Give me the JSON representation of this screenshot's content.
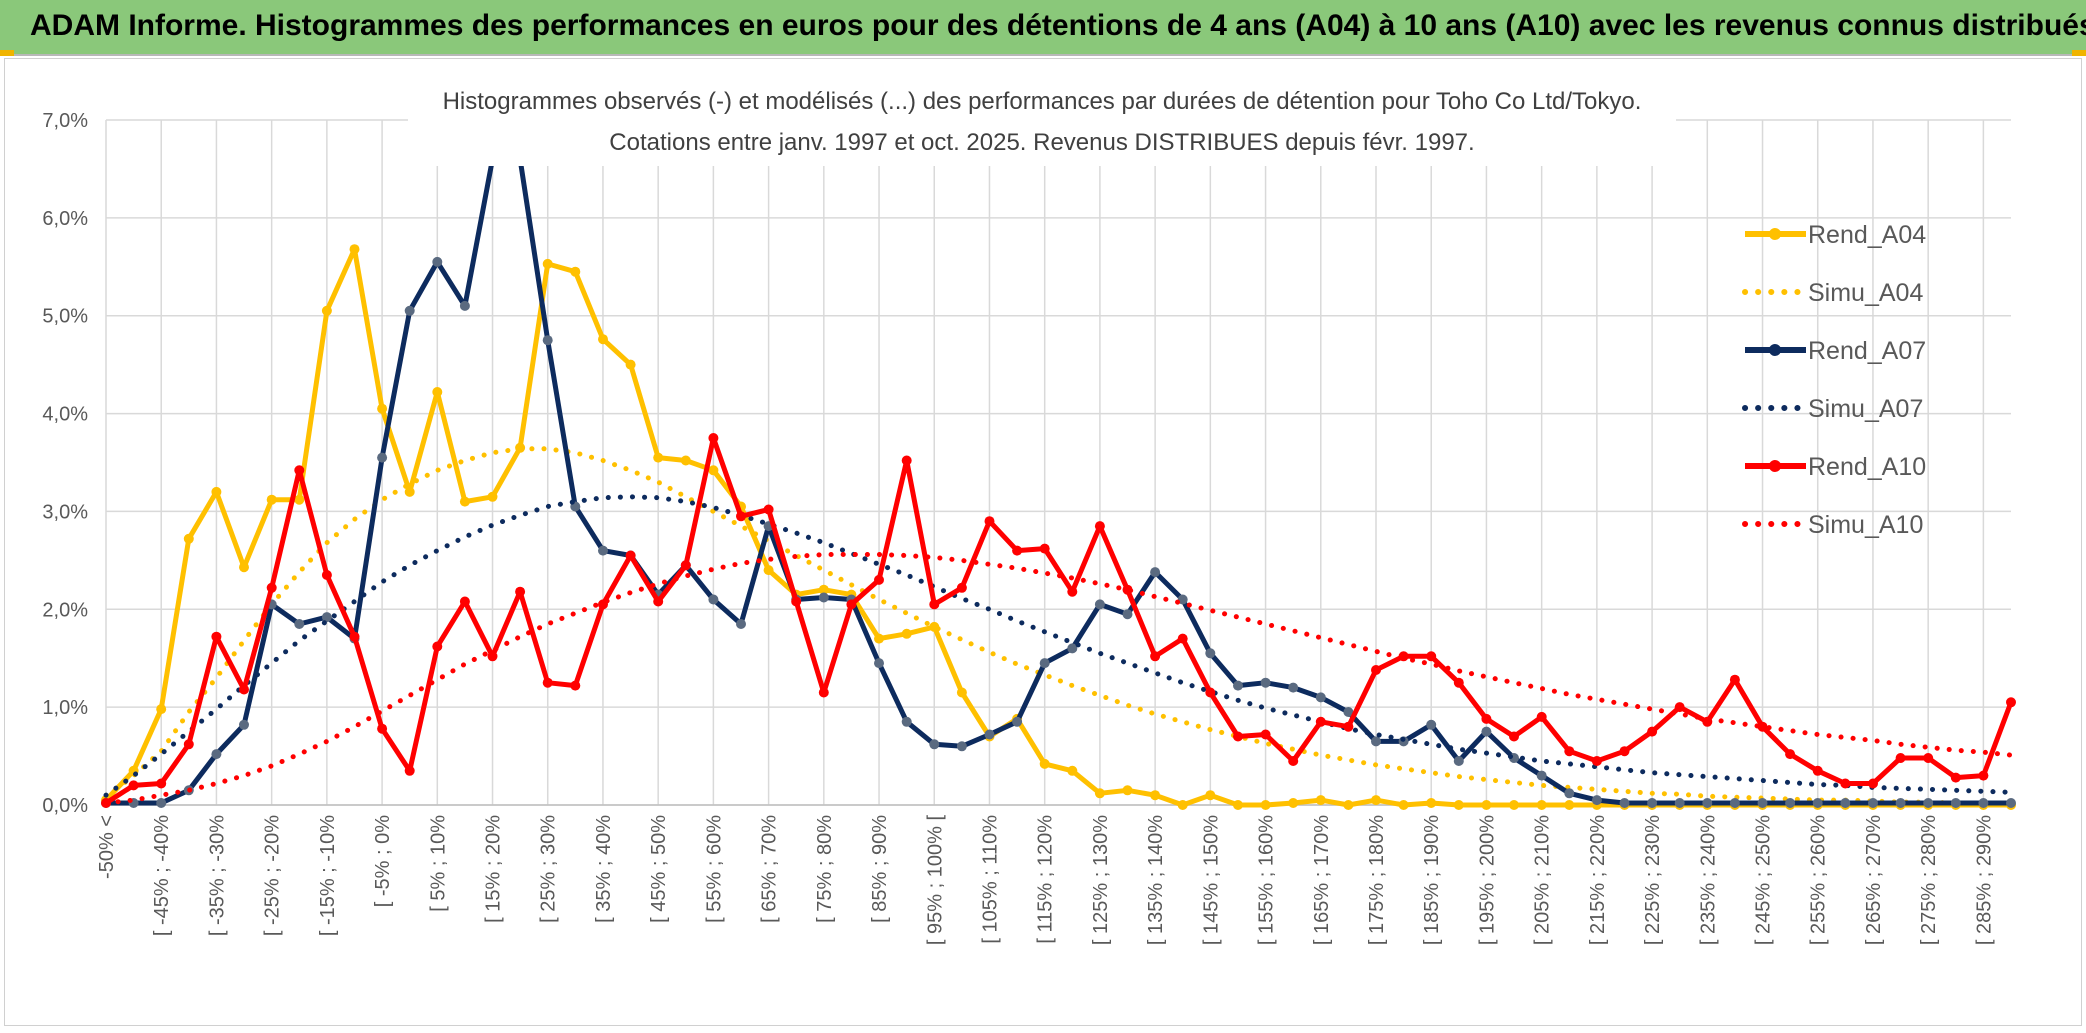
{
  "banner": {
    "title": "ADAM Informe. Histogrammes des performances en euros pour des détentions de 4 ans (A04) à 10 ans (A10) avec les revenus connus distribués"
  },
  "chart_data": {
    "type": "line",
    "title_line1": "Histogrammes observés (-) et modélisés (...) des performances par durées de détention pour Toho Co Ltd/Tokyo.",
    "title_line2": "Cotations entre janv. 1997 et oct. 2025. Revenus DISTRIBUES depuis févr. 1997.",
    "xlabel": "",
    "ylabel": "",
    "ylim": [
      0,
      7
    ],
    "yticks": [
      "0,0%",
      "1,0%",
      "2,0%",
      "3,0%",
      "4,0%",
      "5,0%",
      "6,0%",
      "7,0%"
    ],
    "x_tick_labels": [
      "-50% <",
      "[ -45% ; -40%",
      "[ -35% ; -30%",
      "[ -25% ; -20%",
      "[ -15% ; -10%",
      "[ -5% ; 0%",
      "[ 5% ; 10%",
      "[ 15% ; 20%",
      "[ 25% ; 30%",
      "[ 35% ; 40%",
      "[ 45% ; 50%",
      "[ 55% ; 60%",
      "[ 65% ; 70%",
      "[ 75% ; 80%",
      "[ 85% ; 90%",
      "[ 95% ; 100% [",
      "[ 105% ; 110%",
      "[ 115% ; 120%",
      "[ 125% ; 130%",
      "[ 135% ; 140%",
      "[ 145% ; 150%",
      "[ 155% ; 160%",
      "[ 165% ; 170%",
      "[ 175% ; 180%",
      "[ 185% ; 190%",
      "[ 195% ; 200%",
      "[ 205% ; 210%",
      "[ 215% ; 220%",
      "[ 225% ; 230%",
      "[ 235% ; 240%",
      "[ 245% ; 250%",
      "[ 255% ; 260%",
      "[ 265% ; 270%",
      "[ 275% ; 280%",
      "[ 285% ; 290%"
    ],
    "num_points": 70,
    "legend": {
      "position": "right"
    },
    "series": [
      {
        "name": "Rend_A04",
        "style": "solid",
        "color": "#ffc000",
        "values": [
          0.05,
          0.35,
          0.98,
          2.72,
          3.2,
          2.43,
          3.12,
          3.12,
          5.05,
          5.68,
          4.05,
          3.2,
          4.22,
          3.1,
          3.15,
          3.65,
          5.53,
          5.45,
          4.76,
          4.5,
          3.55,
          3.52,
          3.42,
          3.05,
          2.4,
          2.15,
          2.2,
          2.15,
          1.7,
          1.75,
          1.82,
          1.15,
          0.7,
          0.88,
          0.42,
          0.35,
          0.12,
          0.15,
          0.1,
          0.0,
          0.1,
          0.0,
          0.0,
          0.02,
          0.05,
          0.0,
          0.05,
          0.0,
          0.02,
          0.0,
          0.0,
          0.0,
          0.0,
          0.0,
          0.0,
          0.0,
          0.0,
          0.0,
          0.0,
          0.0,
          0.0,
          0.0,
          0.0,
          0.0,
          0.0,
          0.0,
          0.0,
          0.0,
          0.0,
          0.0
        ]
      },
      {
        "name": "Simu_A04",
        "style": "dotted",
        "color": "#ffc000",
        "values": [
          0.08,
          0.3,
          0.55,
          0.95,
          1.3,
          1.68,
          2.05,
          2.38,
          2.68,
          2.92,
          3.12,
          3.28,
          3.42,
          3.52,
          3.6,
          3.64,
          3.64,
          3.6,
          3.52,
          3.42,
          3.3,
          3.15,
          3.0,
          2.85,
          2.7,
          2.55,
          2.4,
          2.25,
          2.1,
          1.96,
          1.82,
          1.69,
          1.56,
          1.44,
          1.33,
          1.22,
          1.12,
          1.02,
          0.93,
          0.85,
          0.77,
          0.7,
          0.63,
          0.57,
          0.51,
          0.46,
          0.41,
          0.37,
          0.33,
          0.29,
          0.26,
          0.23,
          0.2,
          0.18,
          0.16,
          0.14,
          0.12,
          0.11,
          0.09,
          0.08,
          0.07,
          0.06,
          0.05,
          0.05,
          0.04,
          0.03,
          0.03,
          0.02,
          0.02,
          0.02
        ]
      },
      {
        "name": "Rend_A07",
        "style": "solid",
        "color": "#0d2b5e",
        "values": [
          0.02,
          0.02,
          0.02,
          0.15,
          0.52,
          0.82,
          2.05,
          1.85,
          1.92,
          1.7,
          3.55,
          5.05,
          5.55,
          5.1,
          6.6,
          6.6,
          4.75,
          3.05,
          2.6,
          2.55,
          2.15,
          2.45,
          2.1,
          1.85,
          2.85,
          2.1,
          2.12,
          2.1,
          1.45,
          0.85,
          0.62,
          0.6,
          0.72,
          0.85,
          1.45,
          1.6,
          2.05,
          1.95,
          2.38,
          2.1,
          1.55,
          1.22,
          1.25,
          1.2,
          1.1,
          0.95,
          0.65,
          0.65,
          0.82,
          0.45,
          0.75,
          0.48,
          0.3,
          0.12,
          0.05,
          0.02,
          0.02,
          0.02,
          0.02,
          0.02,
          0.02,
          0.02,
          0.02,
          0.02,
          0.02,
          0.02,
          0.02,
          0.02,
          0.02,
          0.02
        ]
      },
      {
        "name": "Simu_A07",
        "style": "dotted",
        "color": "#0d2b5e",
        "values": [
          0.1,
          0.3,
          0.52,
          0.75,
          0.98,
          1.22,
          1.45,
          1.68,
          1.88,
          2.08,
          2.28,
          2.45,
          2.6,
          2.74,
          2.86,
          2.96,
          3.05,
          3.1,
          3.14,
          3.15,
          3.14,
          3.1,
          3.04,
          2.96,
          2.87,
          2.78,
          2.68,
          2.57,
          2.46,
          2.35,
          2.23,
          2.11,
          2.0,
          1.88,
          1.77,
          1.66,
          1.55,
          1.45,
          1.35,
          1.25,
          1.16,
          1.07,
          0.99,
          0.92,
          0.85,
          0.78,
          0.72,
          0.67,
          0.62,
          0.57,
          0.53,
          0.49,
          0.45,
          0.42,
          0.39,
          0.36,
          0.33,
          0.31,
          0.29,
          0.27,
          0.25,
          0.23,
          0.21,
          0.2,
          0.18,
          0.17,
          0.16,
          0.15,
          0.14,
          0.13
        ]
      },
      {
        "name": "Rend_A10",
        "style": "solid",
        "color": "#ff0000",
        "values": [
          0.02,
          0.2,
          0.22,
          0.62,
          1.72,
          1.18,
          2.22,
          3.42,
          2.35,
          1.72,
          0.78,
          0.35,
          1.62,
          2.08,
          1.52,
          2.18,
          1.25,
          1.22,
          2.05,
          2.55,
          2.08,
          2.45,
          3.75,
          2.95,
          3.02,
          2.08,
          1.15,
          2.05,
          2.3,
          3.52,
          2.05,
          2.22,
          2.9,
          2.6,
          2.62,
          2.18,
          2.85,
          2.2,
          1.52,
          1.7,
          1.15,
          0.7,
          0.72,
          0.45,
          0.85,
          0.8,
          1.38,
          1.52,
          1.52,
          1.25,
          0.88,
          0.7,
          0.9,
          0.55,
          0.45,
          0.55,
          0.75,
          1.0,
          0.85,
          1.28,
          0.8,
          0.52,
          0.35,
          0.22,
          0.22,
          0.48,
          0.48,
          0.28,
          0.3,
          1.05
        ]
      },
      {
        "name": "Simu_A10",
        "style": "dotted",
        "color": "#ff0000",
        "values": [
          0.02,
          0.05,
          0.1,
          0.15,
          0.22,
          0.3,
          0.4,
          0.52,
          0.65,
          0.8,
          0.96,
          1.12,
          1.28,
          1.44,
          1.58,
          1.72,
          1.85,
          1.96,
          2.07,
          2.17,
          2.26,
          2.34,
          2.41,
          2.47,
          2.51,
          2.54,
          2.56,
          2.56,
          2.56,
          2.55,
          2.53,
          2.5,
          2.46,
          2.42,
          2.37,
          2.32,
          2.26,
          2.2,
          2.13,
          2.06,
          1.99,
          1.92,
          1.85,
          1.78,
          1.71,
          1.64,
          1.57,
          1.5,
          1.44,
          1.37,
          1.31,
          1.25,
          1.19,
          1.13,
          1.08,
          1.03,
          0.98,
          0.93,
          0.88,
          0.84,
          0.8,
          0.76,
          0.72,
          0.69,
          0.66,
          0.62,
          0.59,
          0.56,
          0.54,
          0.51
        ]
      }
    ]
  }
}
